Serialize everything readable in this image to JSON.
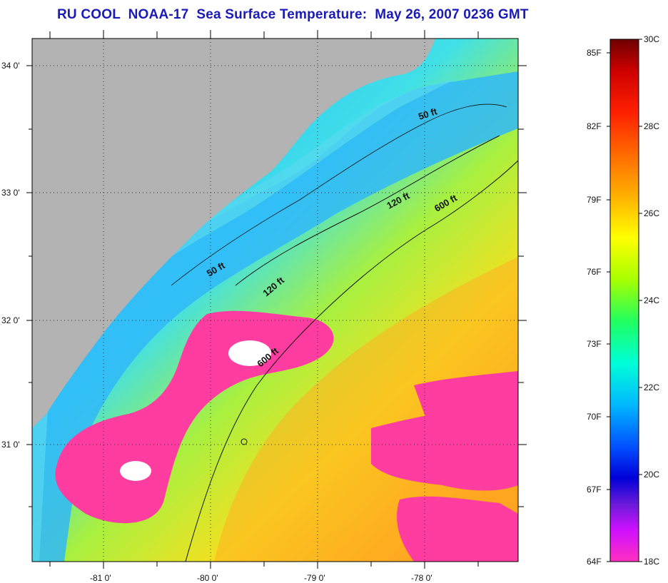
{
  "title": "RU COOL  NOAA-17  Sea Surface Temperature:  May 26, 2007 0236 GMT",
  "latitude_labels": [
    "34 0'",
    "33 0'",
    "32 0'",
    "31 0'"
  ],
  "longitude_labels": [
    "-81 0'",
    "-80 0'",
    "-79 0'",
    "-78 0'"
  ],
  "contour_labels": [
    "50 ft",
    "120 ft",
    "600 ft",
    "50 ft",
    "120 ft",
    "600 ft"
  ],
  "colorbar": {
    "fahrenheit_labels": [
      "85F",
      "82F",
      "79F",
      "76F",
      "73F",
      "70F",
      "67F",
      "64F"
    ],
    "celsius_labels": [
      "30C",
      "28C",
      "26C",
      "24C",
      "22C",
      "20C",
      "18C"
    ],
    "colors": [
      "#7a0000",
      "#ff0000",
      "#ff8000",
      "#ffff00",
      "#80ff00",
      "#00ffc0",
      "#00c0ff",
      "#0030ff",
      "#0000c0",
      "#a000ff",
      "#ff20c0"
    ]
  },
  "colors": {
    "land": "#b3b3b3",
    "cloud": "#ff3da0",
    "nodata": "#ffffff",
    "title": "#1a1ab8"
  }
}
